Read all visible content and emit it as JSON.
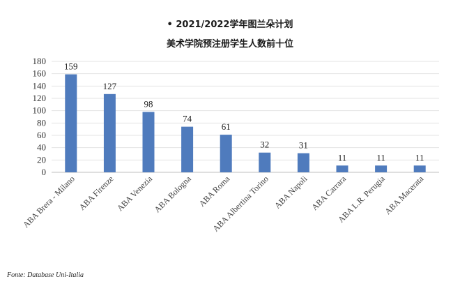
{
  "header": {
    "title_line1": "• 2021/2022学年图兰朵计划",
    "title_line2": "美术学院预注册学生人数前十位"
  },
  "footer": {
    "source": "Fonte: Database Uni-Italia"
  },
  "chart_data": {
    "type": "bar",
    "title": "• 2021/2022学年图兰朵计划 美术学院预注册学生人数前十位",
    "xlabel": "",
    "ylabel": "",
    "categories": [
      "ABA Brera - Milano",
      "ABA Firenze",
      "ABA Venezia",
      "ABA Bologna",
      "ABA Roma",
      "ABA Albertina Torino",
      "ABA Napoli",
      "ABA Carrara",
      "ABA L.R. Perugia",
      "ABA Macerata"
    ],
    "values": [
      159,
      127,
      98,
      74,
      61,
      32,
      31,
      11,
      11,
      11
    ],
    "ylim": [
      0,
      180
    ],
    "yticks": [
      0,
      20,
      40,
      60,
      80,
      100,
      120,
      140,
      160,
      180
    ],
    "grid": true,
    "legend": "none",
    "bar_color": "#4f7bbd",
    "data_labels": true
  }
}
